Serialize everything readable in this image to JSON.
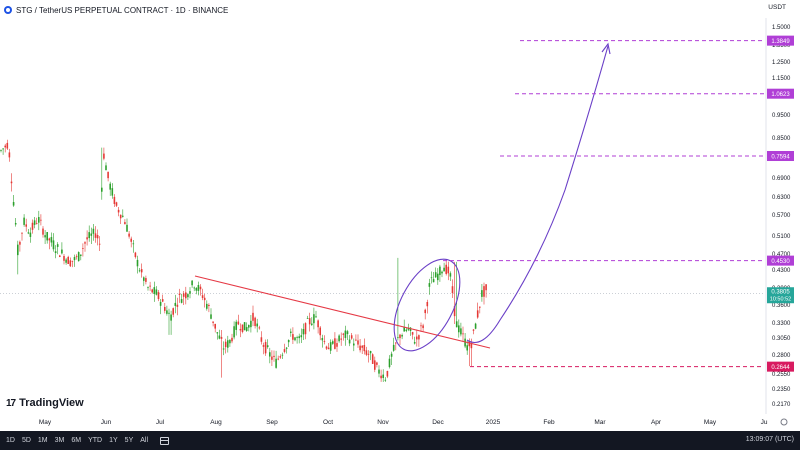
{
  "header": {
    "title": "STG / TetherUS PERPETUAL CONTRACT · 1D · BINANCE",
    "currency": "USDT"
  },
  "branding": {
    "logo_text": "TradingView",
    "logo_mark": "17"
  },
  "bottom_bar": {
    "timeframes": [
      "1D",
      "5D",
      "1M",
      "3M",
      "6M",
      "YTD",
      "1Y",
      "5Y",
      "All"
    ],
    "clock": "13:09:07 (UTC)"
  },
  "colors": {
    "up": "#26a69a",
    "down": "#ef5350",
    "candle_up": "#2ca02c",
    "candle_down": "#e53935",
    "trendline": "#e53945",
    "curve": "#6a3fc7",
    "level": "#b03fd6",
    "stop_level": "#d81b60",
    "price_line": "#6a3fc7",
    "bottom_bar": "#131722"
  },
  "chart_data": {
    "type": "candlestick",
    "title": "STG / TetherUS PERPETUAL CONTRACT · 1D · BINANCE",
    "ylabel": "USDT",
    "y_scale": "log",
    "ylim": [
      0.2,
      1.6
    ],
    "x_ticks": [
      "May",
      "Jun",
      "Jul",
      "Aug",
      "Sep",
      "Oct",
      "Nov",
      "Dec",
      "2025",
      "Feb",
      "Mar",
      "Apr",
      "May",
      "Ju"
    ],
    "y_ticks": [
      "1.5000",
      "1.3500",
      "1.2500",
      "1.1500",
      "1.0500",
      "0.9500",
      "0.8500",
      "0.7500",
      "0.6900",
      "0.6300",
      "0.5700",
      "0.5100",
      "0.4700",
      "0.4300",
      "0.3900",
      "0.3600",
      "0.3300",
      "0.3050",
      "0.2800",
      "0.2550",
      "0.2350",
      "0.2170"
    ],
    "levels": [
      {
        "label": "1.3849",
        "value": 1.3849,
        "kind": "target"
      },
      {
        "label": "1.0623",
        "value": 1.0623,
        "kind": "target"
      },
      {
        "label": "0.7594",
        "value": 0.7594,
        "kind": "target"
      },
      {
        "label": "0.4530",
        "value": 0.453,
        "kind": "target"
      },
      {
        "label": "0.2644",
        "value": 0.2644,
        "kind": "stop"
      }
    ],
    "current_price": {
      "label": "0.3805",
      "countdown": "10:50:52",
      "value": 0.3805
    },
    "approximate_closes": [
      {
        "x": "Apr",
        "y": 0.8
      },
      {
        "x": "May",
        "y": 0.53
      },
      {
        "x": "Jun",
        "y": 0.71
      },
      {
        "x": "Jun",
        "y": 0.5
      },
      {
        "x": "Jul",
        "y": 0.36
      },
      {
        "x": "Jul",
        "y": 0.4
      },
      {
        "x": "Aug",
        "y": 0.3
      },
      {
        "x": "Sep",
        "y": 0.31
      },
      {
        "x": "Oct",
        "y": 0.28
      },
      {
        "x": "Nov",
        "y": 0.25
      },
      {
        "x": "Dec",
        "y": 0.44
      },
      {
        "x": "Dec",
        "y": 0.3
      },
      {
        "x": "2025",
        "y": 0.38
      }
    ]
  }
}
